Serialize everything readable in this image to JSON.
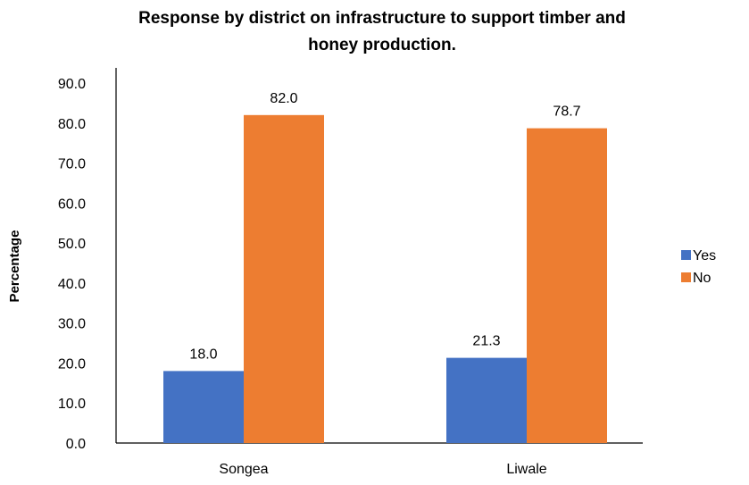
{
  "chart_data": {
    "type": "bar",
    "title_lines": [
      "Response by district  on infrastructure to support timber and",
      "honey production."
    ],
    "xlabel": "",
    "ylabel": "Percentage",
    "ylim": [
      0,
      90
    ],
    "yticks": [
      "0.0",
      "10.0",
      "20.0",
      "30.0",
      "40.0",
      "50.0",
      "60.0",
      "70.0",
      "80.0",
      "90.0"
    ],
    "categories": [
      "Songea",
      "Liwale"
    ],
    "series": [
      {
        "name": "Yes",
        "color": "#4472C4",
        "values": [
          18.0,
          21.3
        ],
        "labels": [
          "18.0",
          "21.3"
        ]
      },
      {
        "name": "No",
        "color": "#ED7D31",
        "values": [
          82.0,
          78.7
        ],
        "labels": [
          "82.0",
          "78.7"
        ]
      }
    ],
    "grid": false,
    "legend_position": "right"
  }
}
